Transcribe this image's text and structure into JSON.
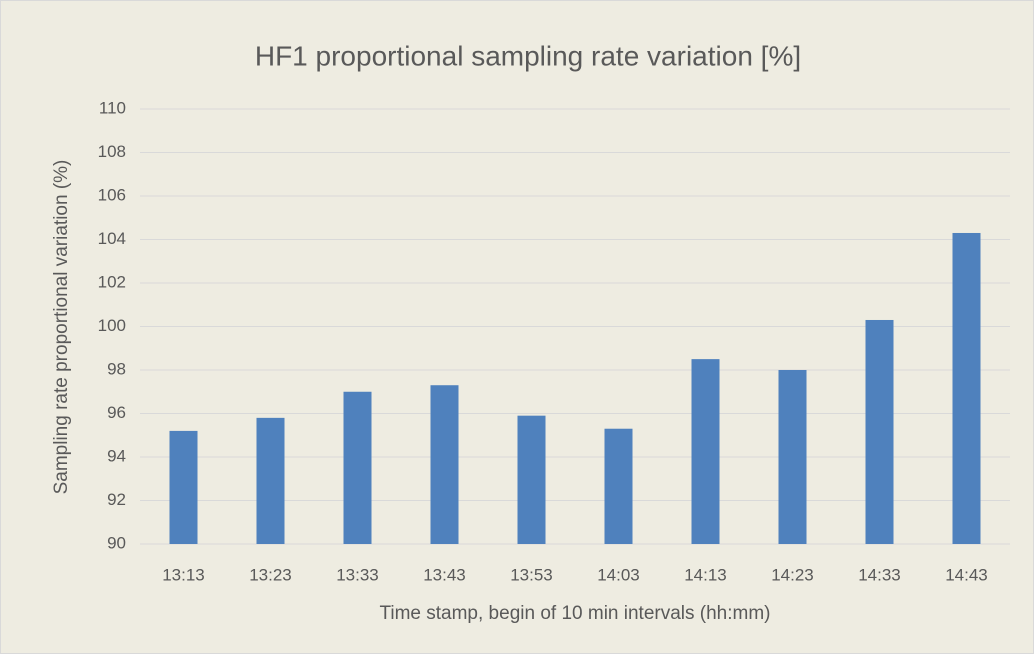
{
  "chart_data": {
    "type": "bar",
    "title": "HF1 proportional sampling rate variation [%]",
    "x_label": "Time stamp, begin of 10 min intervals (hh:mm)",
    "y_label": "Sampling rate proportional variation (%)",
    "categories": [
      "13:13",
      "13:23",
      "13:33",
      "13:43",
      "13:53",
      "14:03",
      "14:13",
      "14:23",
      "14:33",
      "14:43"
    ],
    "values": [
      95.2,
      95.8,
      97.0,
      97.3,
      95.9,
      95.3,
      98.5,
      98.0,
      100.3,
      104.3
    ],
    "color": "#4f81bd",
    "ylim": [
      90,
      110
    ],
    "yticks": [
      90,
      92,
      94,
      96,
      98,
      100,
      102,
      104,
      106,
      108,
      110
    ],
    "grid": true
  }
}
